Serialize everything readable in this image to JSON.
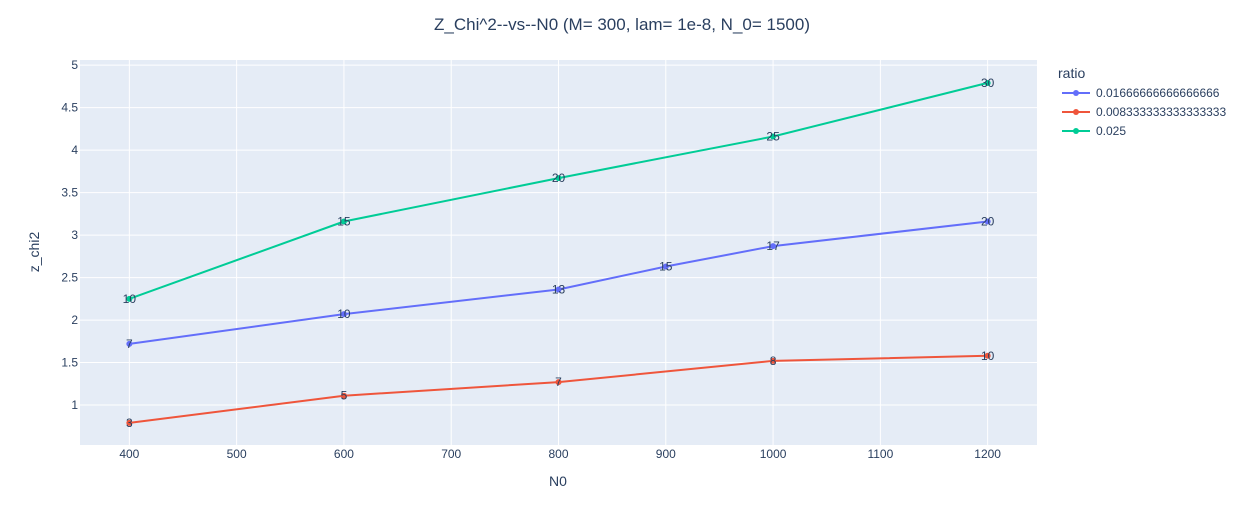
{
  "chart_data": {
    "type": "line",
    "title": "Z_Chi^2--vs--N0  (M= 300, lam= 1e-8, N_0= 1500)",
    "xlabel": "N0",
    "ylabel": "z_chi2",
    "xlim": [
      354,
      1246
    ],
    "ylim": [
      0.53,
      5.06
    ],
    "xticks": [
      400,
      500,
      600,
      700,
      800,
      900,
      1000,
      1100,
      1200
    ],
    "yticks": [
      1,
      1.5,
      2,
      2.5,
      3,
      3.5,
      4,
      4.5,
      5
    ],
    "ytick_labels": [
      "1",
      "1.5",
      "2",
      "2.5",
      "3",
      "3.5",
      "4",
      "4.5",
      "5"
    ],
    "grid": true,
    "legend_title": "ratio",
    "legend_position": "right",
    "series": [
      {
        "name": "0.01666666666666666",
        "color": "#636efa",
        "points": [
          {
            "x": 400,
            "y": 1.72,
            "label": "7"
          },
          {
            "x": 600,
            "y": 2.07,
            "label": "10"
          },
          {
            "x": 800,
            "y": 2.36,
            "label": "13"
          },
          {
            "x": 900,
            "y": 2.63,
            "label": "15"
          },
          {
            "x": 1000,
            "y": 2.87,
            "label": "17"
          },
          {
            "x": 1200,
            "y": 3.16,
            "label": "20"
          }
        ]
      },
      {
        "name": "0.008333333333333333",
        "color": "#ef553b",
        "points": [
          {
            "x": 400,
            "y": 0.79,
            "label": "3"
          },
          {
            "x": 600,
            "y": 1.11,
            "label": "5"
          },
          {
            "x": 800,
            "y": 1.27,
            "label": "7"
          },
          {
            "x": 1000,
            "y": 1.52,
            "label": "8"
          },
          {
            "x": 1200,
            "y": 1.58,
            "label": "10"
          }
        ]
      },
      {
        "name": "0.025",
        "color": "#00cc96",
        "points": [
          {
            "x": 400,
            "y": 2.25,
            "label": "10"
          },
          {
            "x": 600,
            "y": 3.16,
            "label": "15"
          },
          {
            "x": 800,
            "y": 3.67,
            "label": "20"
          },
          {
            "x": 1000,
            "y": 4.16,
            "label": "25"
          },
          {
            "x": 1200,
            "y": 4.79,
            "label": "30"
          }
        ]
      }
    ]
  }
}
